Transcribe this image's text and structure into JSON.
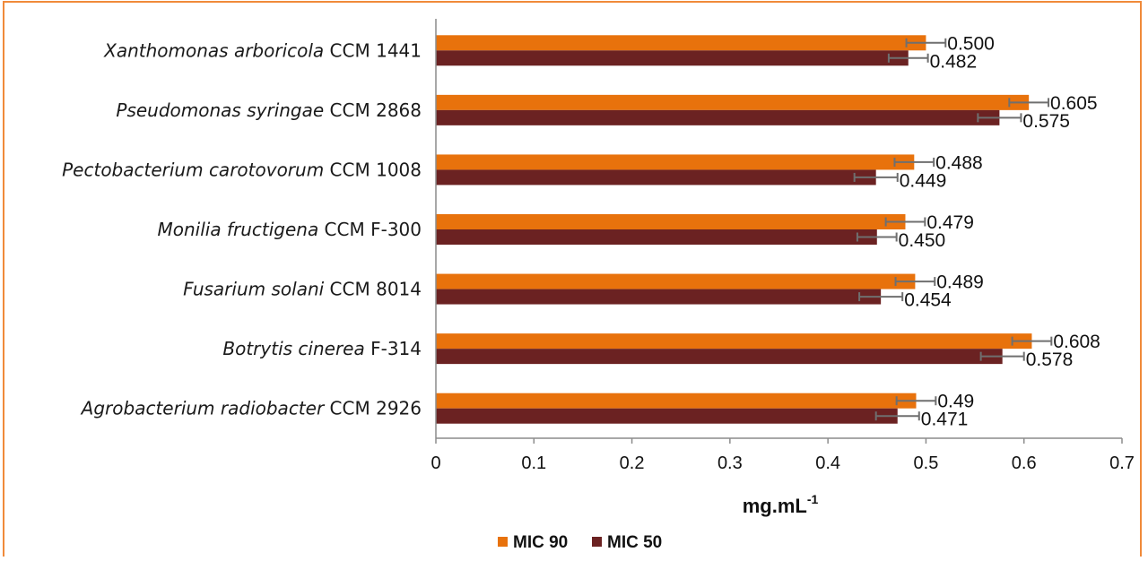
{
  "chart_data": {
    "type": "bar",
    "orientation": "horizontal",
    "categories": [
      {
        "italic": "Xanthomonas arboricola",
        "normal": "CCM 1441"
      },
      {
        "italic": "Pseudomonas syringae",
        "normal": "CCM 2868"
      },
      {
        "italic": "Pectobacterium carotovorum",
        "normal": "CCM 1008"
      },
      {
        "italic": "Monilia fructigena",
        "normal": "CCM F-300"
      },
      {
        "italic": "Fusarium solani",
        "normal": "CCM 8014"
      },
      {
        "italic": "Botrytis cinerea",
        "normal": "F-314"
      },
      {
        "italic": "Agrobacterium radiobacter",
        "normal": "CCM 2926"
      }
    ],
    "series": [
      {
        "name": "MIC 90",
        "color": "#E8720C",
        "values": [
          0.5,
          0.605,
          0.488,
          0.479,
          0.489,
          0.608,
          0.49
        ],
        "labels": [
          "0.500",
          "0.605",
          "0.488",
          "0.479",
          "0.489",
          "0.608",
          "0.49"
        ],
        "errors": [
          0.02,
          0.02,
          0.02,
          0.02,
          0.02,
          0.02,
          0.02
        ]
      },
      {
        "name": "MIC 50",
        "color": "#6B2222",
        "values": [
          0.482,
          0.575,
          0.449,
          0.45,
          0.454,
          0.578,
          0.471
        ],
        "labels": [
          "0.482",
          "0.575",
          "0.449",
          "0.450",
          "0.454",
          "0.578",
          "0.471"
        ],
        "errors": [
          0.02,
          0.022,
          0.022,
          0.02,
          0.022,
          0.022,
          0.022
        ]
      }
    ],
    "xlim": [
      0,
      0.7
    ],
    "xticks": [
      0,
      0.1,
      0.2,
      0.3,
      0.4,
      0.5,
      0.6,
      0.7
    ],
    "xtick_labels": [
      "0",
      "0.1",
      "0.2",
      "0.3",
      "0.4",
      "0.5",
      "0.6",
      "0.7"
    ],
    "xlabel": "mg.mL",
    "xlabel_sup": "-1",
    "error_bar_color": "#6f6f6f",
    "grid": false,
    "legend_position": "bottom-center"
  }
}
